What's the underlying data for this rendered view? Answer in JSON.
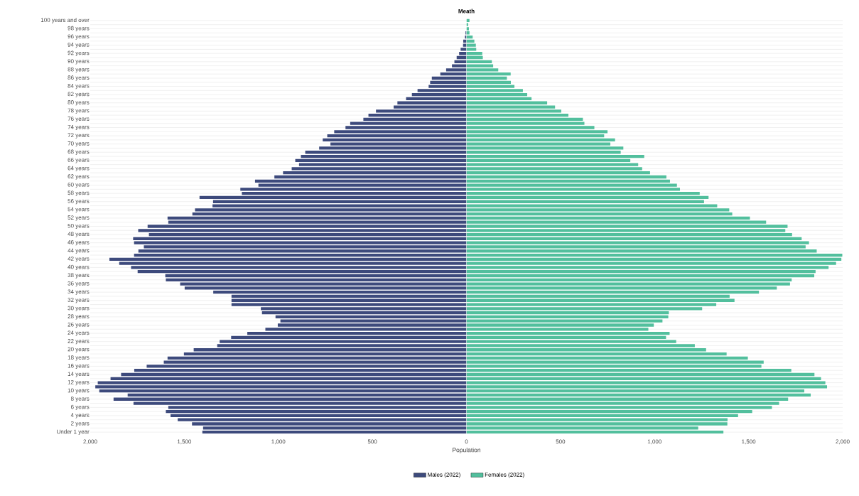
{
  "chart_data": [
    {
      "type": "bar",
      "orientation": "horizontal",
      "title": "Meath",
      "xlabel": "Population",
      "categories": [
        "100 years and over",
        null,
        "98 years",
        null,
        "96 years",
        null,
        "94 years",
        null,
        "92 years",
        null,
        "90 years",
        null,
        "88 years",
        null,
        "86 years",
        null,
        "84 years",
        null,
        "82 years",
        null,
        "80 years",
        null,
        "78 years",
        null,
        "76 years",
        null,
        "74 years",
        null,
        "72 years",
        null,
        "70 years",
        null,
        "68 years",
        null,
        "66 years",
        null,
        "64 years",
        null,
        "62 years",
        null,
        "60 years",
        null,
        "58 years",
        null,
        "56 years",
        null,
        "54 years",
        null,
        "52 years",
        null,
        "50 years",
        null,
        "48 years",
        null,
        "46 years",
        null,
        "44 years",
        null,
        "42 years",
        null,
        "40 years",
        null,
        "38 years",
        null,
        "36 years",
        null,
        "34 years",
        null,
        "32 years",
        null,
        "30 years",
        null,
        "28 years",
        null,
        "26 years",
        null,
        "24 years",
        null,
        "22 years",
        null,
        "20 years",
        null,
        "18 years",
        null,
        "16 years",
        null,
        "14 years",
        null,
        "12 years",
        null,
        "10 years",
        null,
        "8 years",
        null,
        "6 years",
        null,
        "4 years",
        null,
        "2 years",
        null,
        "Under 1 year"
      ],
      "series": [
        {
          "name": "Males (2022)",
          "color": "#3d4a7c",
          "values": [
            null,
            null,
            null,
            5,
            8,
            17,
            18,
            31,
            39,
            52,
            64,
            77,
            108,
            139,
            184,
            193,
            201,
            260,
            290,
            321,
            367,
            387,
            481,
            521,
            548,
            618,
            643,
            703,
            740,
            764,
            723,
            783,
            857,
            880,
            910,
            890,
            929,
            975,
            1021,
            1124,
            1106,
            1202,
            1194,
            1419,
            1347,
            1350,
            1443,
            1457,
            1589,
            1585,
            1695,
            1745,
            1688,
            1772,
            1767,
            1715,
            1744,
            1767,
            1898,
            1846,
            1783,
            1748,
            1601,
            1598,
            1522,
            1498,
            1346,
            1249,
            1249,
            1249,
            1093,
            1087,
            1015,
            989,
            1003,
            1069,
            1165,
            1251,
            1312,
            1325,
            1450,
            1502,
            1589,
            1609,
            1700,
            1766,
            1836,
            1892,
            1960,
            1973,
            1952,
            1801,
            1876,
            1770,
            1585,
            1598,
            1573,
            1535,
            1459,
            1400,
            1404
          ]
        }
      ],
      "xlim": [
        2000,
        0
      ],
      "xticks": [
        {
          "value": 2000,
          "label": "2,000"
        },
        {
          "value": 1500,
          "label": "1,500"
        },
        {
          "value": 1000,
          "label": "1,000"
        },
        500,
        0
      ],
      "grid": "y",
      "legend": "bottom"
    },
    {
      "type": "bar",
      "orientation": "horizontal",
      "categories": [
        null,
        null,
        null,
        null,
        null,
        null,
        null,
        null,
        null,
        null,
        null,
        null,
        null,
        null,
        null,
        null,
        null,
        null,
        null,
        null,
        null,
        null,
        null,
        null,
        null,
        null,
        null,
        null,
        null,
        null,
        null,
        null,
        null,
        null,
        null,
        null,
        null,
        null,
        null,
        null,
        null,
        null,
        null,
        null,
        null,
        null,
        null,
        null,
        null,
        null,
        null,
        null,
        null,
        null,
        null,
        null,
        null,
        null,
        null,
        null,
        null,
        null,
        null,
        null,
        null,
        null,
        null,
        null,
        null,
        null,
        null,
        null,
        null,
        null,
        null,
        null,
        null,
        null,
        null,
        null,
        null,
        null,
        null,
        null,
        null,
        null,
        null,
        null,
        null,
        null,
        null,
        null,
        null,
        null,
        null,
        null,
        null,
        null,
        null,
        null,
        null
      ],
      "series": [
        {
          "name": "Females (2022)",
          "color": "#52bf9d",
          "values": [
            16,
            9,
            13,
            16,
            33,
            42,
            50,
            52,
            84,
            87,
            135,
            142,
            169,
            235,
            215,
            236,
            255,
            300,
            323,
            346,
            429,
            471,
            504,
            542,
            619,
            627,
            680,
            750,
            732,
            790,
            765,
            834,
            820,
            945,
            871,
            913,
            934,
            976,
            1063,
            1082,
            1119,
            1135,
            1240,
            1287,
            1263,
            1333,
            1397,
            1413,
            1507,
            1593,
            1707,
            1695,
            1731,
            1782,
            1821,
            1803,
            1862,
            1998,
            1993,
            1965,
            1925,
            1856,
            1849,
            1729,
            1720,
            1650,
            1555,
            1399,
            1425,
            1328,
            1253,
            1076,
            1073,
            1042,
            996,
            967,
            1080,
            1061,
            1115,
            1214,
            1274,
            1383,
            1496,
            1580,
            1568,
            1727,
            1850,
            1885,
            1908,
            1917,
            1796,
            1830,
            1710,
            1662,
            1624,
            1519,
            1444,
            1388,
            1387,
            1232,
            1366
          ]
        }
      ],
      "xlim": [
        0,
        2000
      ],
      "xticks": [
        500,
        {
          "value": 1000,
          "label": "1,000"
        },
        {
          "value": 1500,
          "label": "1,500"
        },
        {
          "value": 2000,
          "label": "2,000"
        }
      ],
      "tick_labels": "x",
      "grid": "y",
      "legend": "bottom"
    }
  ]
}
